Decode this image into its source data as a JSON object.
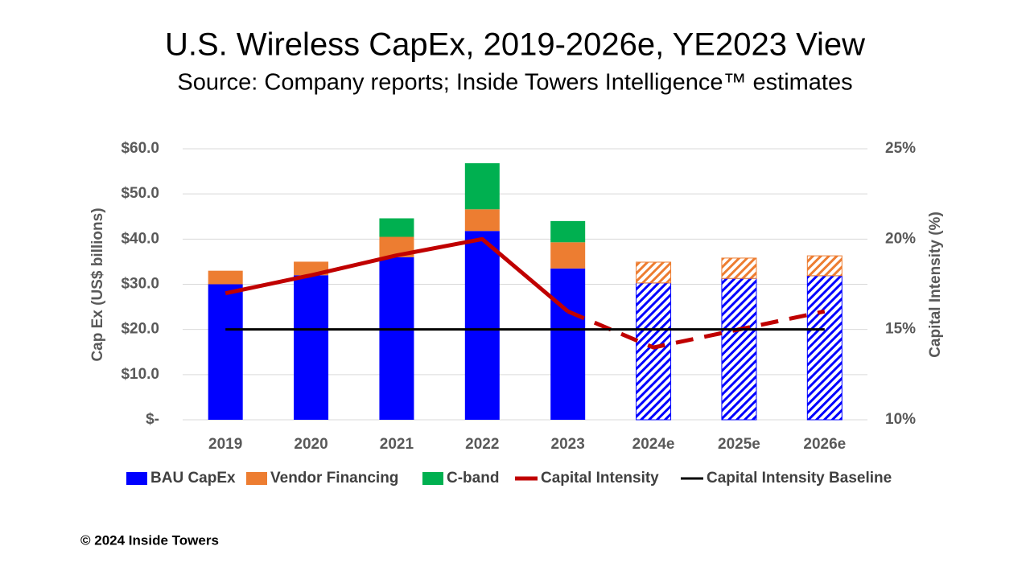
{
  "chart_data": {
    "type": "bar",
    "title": "U.S. Wireless CapEx, 2019-2026e, YE2023 View",
    "subtitle": "Source: Company reports; Inside Towers Intelligence™ estimates",
    "y_label": "Cap Ex (US$ billions)",
    "y2_label": "Capital Intensity (%)",
    "categories": [
      "2019",
      "2020",
      "2021",
      "2022",
      "2023",
      "2024e",
      "2025e",
      "2026e"
    ],
    "estimate_from": 5,
    "stacked": true,
    "grid": true,
    "legend": "bottom",
    "ylim": [
      0,
      60
    ],
    "yticks": [
      {
        "value": 0,
        "label": "$-"
      },
      {
        "value": 10,
        "label": "$10.0"
      },
      {
        "value": 20,
        "label": "$20.0"
      },
      {
        "value": 30,
        "label": "$30.0"
      },
      {
        "value": 40,
        "label": "$40.0"
      },
      {
        "value": 50,
        "label": "$50.0"
      },
      {
        "value": 60,
        "label": "$60.0"
      }
    ],
    "y2lim": [
      10,
      25
    ],
    "y2ticks": [
      {
        "value": 10,
        "label": "10%"
      },
      {
        "value": 15,
        "label": "15%"
      },
      {
        "value": 20,
        "label": "20%"
      },
      {
        "value": 25,
        "label": "25%"
      }
    ],
    "series": [
      {
        "name": "BAU CapEx",
        "type": "bar",
        "color": "#0000ff",
        "values": [
          30,
          32,
          36,
          41.8,
          33.5,
          30.3,
          31.3,
          31.9
        ]
      },
      {
        "name": "Vendor Financing",
        "type": "bar",
        "color": "#ed7d31",
        "values": [
          3,
          3,
          4.5,
          4.8,
          5.8,
          4.6,
          4.5,
          4.4
        ]
      },
      {
        "name": "C-band",
        "type": "bar",
        "color": "#00b050",
        "values": [
          null,
          null,
          4.1,
          10.2,
          4.7,
          null,
          null,
          null
        ]
      },
      {
        "name": "Capital Intensity",
        "type": "line",
        "axis": "y2",
        "color": "#c00000",
        "values": [
          17,
          18,
          19.1,
          20,
          16,
          14,
          15,
          16
        ]
      },
      {
        "name": "Capital Intensity Baseline",
        "type": "line",
        "axis": "y2",
        "color": "#000000",
        "values": [
          15,
          15,
          15,
          15,
          15,
          15,
          15,
          15
        ]
      }
    ],
    "footer": "© 2024 Inside Towers"
  }
}
